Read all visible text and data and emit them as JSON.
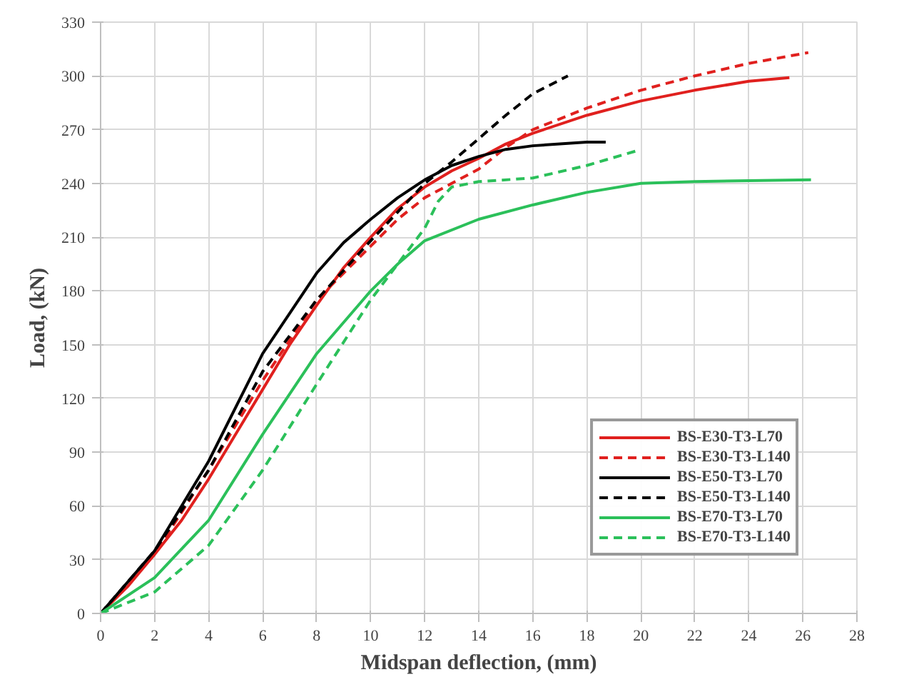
{
  "chart_data": {
    "type": "line",
    "xlabel": "Midspan deflection, (mm)",
    "ylabel": "Load, (kN)",
    "xlim": [
      0,
      28
    ],
    "ylim": [
      0,
      330
    ],
    "xticks": [
      0,
      2,
      4,
      6,
      8,
      10,
      12,
      14,
      16,
      18,
      20,
      22,
      24,
      26,
      28
    ],
    "yticks": [
      0,
      30,
      60,
      90,
      120,
      150,
      180,
      210,
      240,
      270,
      300,
      330
    ],
    "grid": true,
    "legend": "bottom right",
    "series": [
      {
        "name": "BS-E30-T3-L70",
        "color": "#e0201e",
        "line_style": "solid",
        "x": [
          0,
          1,
          2,
          3,
          4,
          5,
          6,
          7,
          8,
          9,
          10,
          11,
          12,
          13,
          14,
          15,
          16,
          18,
          20,
          22,
          24,
          25.5
        ],
        "values": [
          0,
          15,
          33,
          52,
          75,
          100,
          125,
          150,
          172,
          193,
          210,
          226,
          238,
          247,
          254,
          262,
          268,
          278,
          286,
          292,
          297,
          299
        ]
      },
      {
        "name": "BS-E30-T3-L140",
        "color": "#e0201e",
        "line_style": "dashed",
        "x": [
          0,
          2,
          4,
          6,
          8,
          10,
          11,
          12,
          13,
          14,
          15,
          16,
          18,
          20,
          22,
          24,
          26.2
        ],
        "values": [
          0,
          33,
          80,
          130,
          175,
          205,
          220,
          232,
          240,
          248,
          260,
          270,
          282,
          292,
          300,
          307,
          313
        ]
      },
      {
        "name": "BS-E50-T3-L70",
        "color": "#000000",
        "line_style": "solid",
        "x": [
          0,
          2,
          4,
          6,
          8,
          9,
          10,
          11,
          12,
          13,
          14,
          15,
          16,
          18,
          18.7
        ],
        "values": [
          0,
          35,
          85,
          145,
          190,
          207,
          220,
          232,
          242,
          250,
          255,
          259,
          261,
          263,
          263
        ]
      },
      {
        "name": "BS-E50-T3-L140",
        "color": "#000000",
        "line_style": "dashed",
        "x": [
          0,
          2,
          4,
          6,
          8,
          10,
          12,
          13,
          14,
          15,
          16,
          17.3
        ],
        "values": [
          0,
          35,
          80,
          135,
          175,
          208,
          240,
          252,
          265,
          278,
          290,
          300
        ]
      },
      {
        "name": "BS-E70-T3-L70",
        "color": "#2bc05a",
        "line_style": "solid",
        "x": [
          0,
          2,
          4,
          6,
          8,
          10,
          11,
          12,
          14,
          16,
          18,
          20,
          22,
          24,
          26.3
        ],
        "values": [
          0,
          20,
          52,
          100,
          145,
          180,
          195,
          208,
          220,
          228,
          235,
          240,
          241,
          241.5,
          242
        ]
      },
      {
        "name": "BS-E70-T3-L140",
        "color": "#2bc05a",
        "line_style": "dashed",
        "x": [
          0,
          2,
          4,
          6,
          8,
          10,
          11,
          12,
          12.5,
          13,
          14,
          16,
          18,
          19.8
        ],
        "values": [
          0,
          12,
          38,
          80,
          128,
          175,
          195,
          215,
          230,
          238,
          241,
          243,
          250,
          258
        ]
      }
    ]
  }
}
